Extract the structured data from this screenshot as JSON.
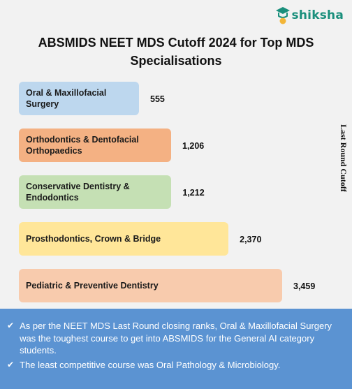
{
  "brand": {
    "name": "shiksha",
    "icon": "shiksha-logo-icon"
  },
  "chart_data": {
    "type": "bar",
    "orientation": "horizontal",
    "title": "ABSMIDS NEET MDS Cutoff 2024 for Top MDS Specialisations",
    "ylabel": "Last Round Cutoff",
    "categories": [
      "Oral & Maxillofacial Surgery",
      "Orthodontics & Dentofacial Orthopaedics",
      "Conservative Dentistry & Endodontics",
      "Prosthodontics, Crown & Bridge",
      "Pediatric & Preventive Dentistry"
    ],
    "values": [
      555,
      1206,
      1212,
      2370,
      3459
    ],
    "value_labels": [
      "555",
      "1,206",
      "1,212",
      "2,370",
      "3,459"
    ],
    "colors": [
      "#bdd7ee",
      "#f4b183",
      "#c5e0b4",
      "#ffe699",
      "#f8cbad"
    ],
    "grid": false,
    "legend": "none"
  },
  "notes": {
    "icon": "checkmark-icon",
    "items": [
      "As per the NEET MDS Last Round closing ranks, Oral & Maxillofacial Surgery was the toughest course to get into ABSMIDS for the General AI category students.",
      "The least competitive course was Oral Pathology & Microbiology."
    ]
  }
}
